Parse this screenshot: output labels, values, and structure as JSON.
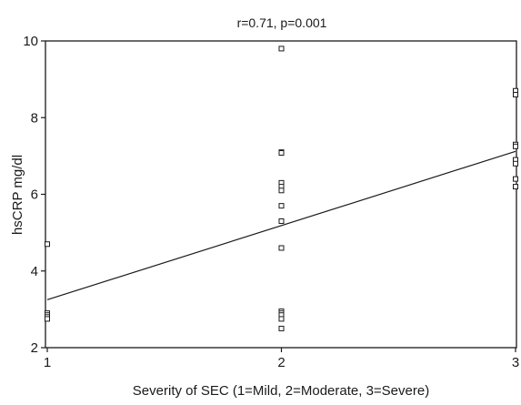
{
  "chart_data": {
    "type": "scatter",
    "title": "r=0.71, p=0.001",
    "xlabel": "Severity of SEC (1=Mild, 2=Moderate, 3=Severe)",
    "ylabel": "hsCRP mg/dl",
    "xlim": [
      1,
      3
    ],
    "ylim": [
      2,
      10
    ],
    "xticks": [
      "1",
      "2",
      "3"
    ],
    "yticks": [
      "2",
      "4",
      "6",
      "8",
      "10"
    ],
    "grid": false,
    "marker": "hollow-square",
    "colors": {
      "marker": "#1a1a1a",
      "line": "#1a1a1a",
      "background": "#ffffff"
    },
    "points": [
      {
        "x": 1,
        "y": 4.7
      },
      {
        "x": 1,
        "y": 2.9
      },
      {
        "x": 1,
        "y": 2.85
      },
      {
        "x": 1,
        "y": 2.8
      },
      {
        "x": 1,
        "y": 2.75
      },
      {
        "x": 2,
        "y": 9.8
      },
      {
        "x": 2,
        "y": 7.1
      },
      {
        "x": 2,
        "y": 7.08
      },
      {
        "x": 2,
        "y": 6.3
      },
      {
        "x": 2,
        "y": 6.2
      },
      {
        "x": 2,
        "y": 6.1
      },
      {
        "x": 2,
        "y": 5.7
      },
      {
        "x": 2,
        "y": 5.3
      },
      {
        "x": 2,
        "y": 4.6
      },
      {
        "x": 2,
        "y": 2.95
      },
      {
        "x": 2,
        "y": 2.9
      },
      {
        "x": 2,
        "y": 2.85
      },
      {
        "x": 2,
        "y": 2.75
      },
      {
        "x": 2,
        "y": 2.5
      },
      {
        "x": 3,
        "y": 8.7
      },
      {
        "x": 3,
        "y": 8.6
      },
      {
        "x": 3,
        "y": 7.3
      },
      {
        "x": 3,
        "y": 7.25
      },
      {
        "x": 3,
        "y": 6.9
      },
      {
        "x": 3,
        "y": 6.8
      },
      {
        "x": 3,
        "y": 6.4
      },
      {
        "x": 3,
        "y": 6.2
      }
    ],
    "fit_line": {
      "x": [
        1,
        3
      ],
      "y": [
        3.25,
        7.12
      ]
    }
  }
}
